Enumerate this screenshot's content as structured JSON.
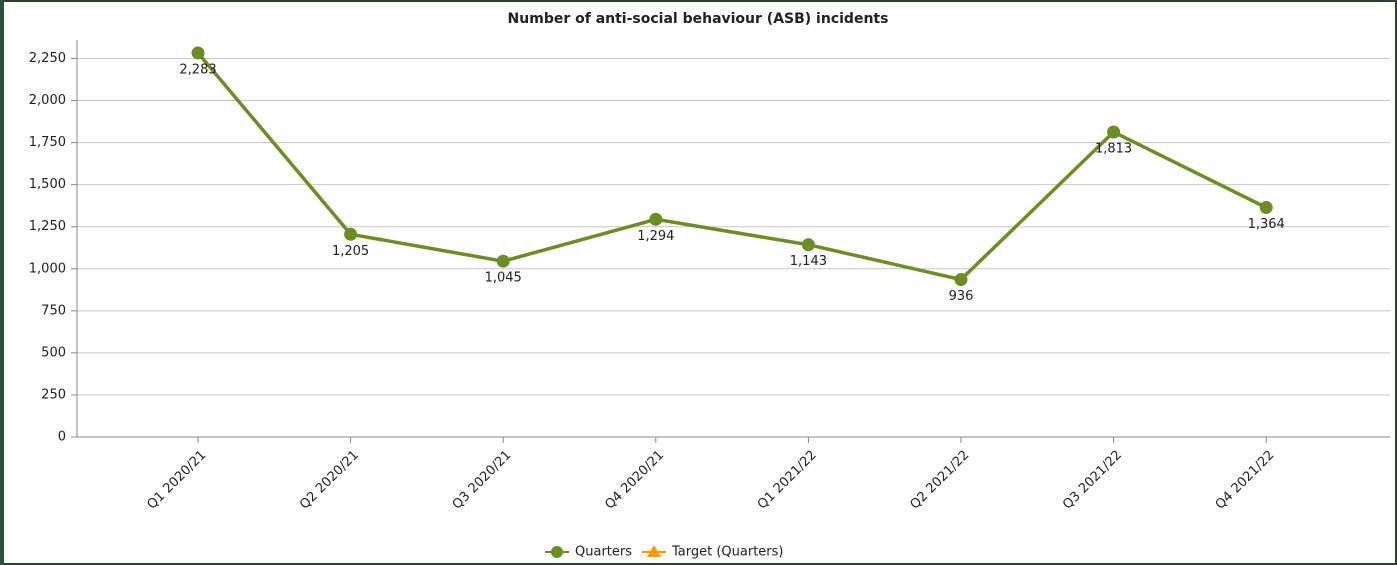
{
  "chart_data": {
    "type": "line",
    "title": "Number of  anti-social behaviour (ASB) incidents",
    "categories": [
      "Q1 2020/21",
      "Q2 2020/21",
      "Q3 2020/21",
      "Q4 2020/21",
      "Q1 2021/22",
      "Q2 2021/22",
      "Q3 2021/22",
      "Q4 2021/22"
    ],
    "series": [
      {
        "name": "Quarters",
        "color": "#6b8e23",
        "values": [
          2283,
          1205,
          1045,
          1294,
          1143,
          936,
          1813,
          1364
        ],
        "value_labels": [
          "2,283",
          "1,205",
          "1,045",
          "1,294",
          "1,143",
          "936",
          "1,813",
          "1,364"
        ]
      },
      {
        "name": "Target (Quarters)",
        "color": "#ff9900",
        "values": [
          null,
          null,
          null,
          null,
          null,
          null,
          null,
          null
        ]
      }
    ],
    "ylim": [
      0,
      2360
    ],
    "yticks": [
      0,
      250,
      500,
      750,
      {
        "value": 1000,
        "label": "1,000"
      },
      {
        "value": 1250,
        "label": "1,250"
      },
      {
        "value": 1500,
        "label": "1,500"
      },
      {
        "value": 1750,
        "label": "1,750"
      },
      {
        "value": 2000,
        "label": "2,000"
      },
      {
        "value": 2250,
        "label": "2,250"
      }
    ],
    "grid": true
  }
}
